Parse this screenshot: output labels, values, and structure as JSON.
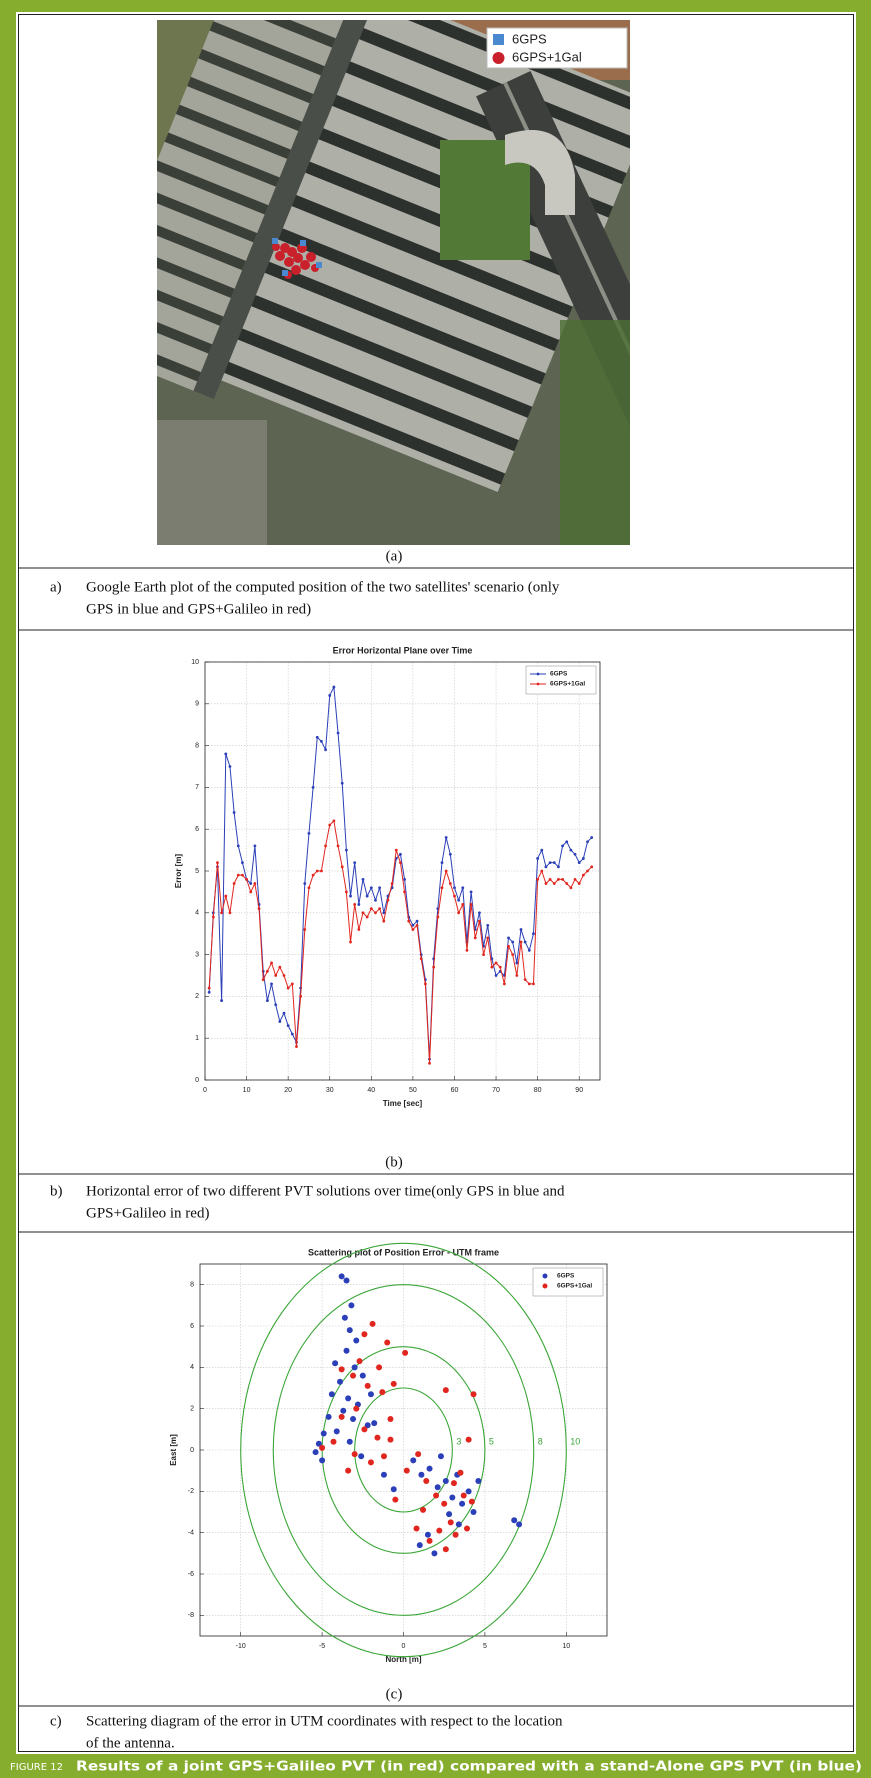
{
  "map": {
    "legend": [
      "6GPS",
      "6GPS+1Gal"
    ]
  },
  "panels": [
    {
      "label": "(a)",
      "caption_marker": "a)",
      "caption_lines": [
        "Google Earth plot of the computed position of the two satellites' scenario (only",
        "GPS in blue and GPS+Galileo in red)"
      ]
    },
    {
      "label": "(b)",
      "caption_marker": "b)",
      "caption_lines": [
        "Horizontal error of two different PVT solutions over time(only GPS in blue and",
        "GPS+Galileo in red)"
      ]
    },
    {
      "label": "(c)",
      "caption_marker": "c)",
      "caption_lines": [
        "Scattering diagram of the error in UTM coordinates with respect to the location",
        "of the antenna."
      ]
    }
  ],
  "chart_data": [
    {
      "type": "line",
      "title": "Error Horizontal Plane over Time",
      "x_label": "Time [sec]",
      "y_label": "Error [m]",
      "x": [
        1,
        2,
        3,
        4,
        5,
        6,
        7,
        8,
        9,
        10,
        11,
        12,
        13,
        14,
        15,
        16,
        17,
        18,
        19,
        20,
        21,
        22,
        23,
        24,
        25,
        26,
        27,
        28,
        29,
        30,
        31,
        32,
        33,
        34,
        35,
        36,
        37,
        38,
        39,
        40,
        41,
        42,
        43,
        44,
        45,
        46,
        47,
        48,
        49,
        50,
        51,
        52,
        53,
        54,
        55,
        56,
        57,
        58,
        59,
        60,
        61,
        62,
        63,
        64,
        65,
        66,
        67,
        68,
        69,
        70,
        71,
        72,
        73,
        74,
        75,
        76,
        77,
        78,
        79,
        80,
        81,
        82,
        83,
        84,
        85,
        86,
        87,
        88,
        89,
        90,
        91,
        92,
        93
      ],
      "xlim": [
        0,
        95
      ],
      "xticks": [
        0,
        10,
        20,
        30,
        40,
        50,
        60,
        70,
        80,
        90
      ],
      "ylim": [
        0,
        10
      ],
      "yticks": [
        0,
        1,
        2,
        3,
        4,
        5,
        6,
        7,
        8,
        9,
        10
      ],
      "grid": true,
      "legend": "upper right",
      "series": [
        {
          "name": "6GPS",
          "color": "#2b3fb8",
          "values": [
            2.1,
            4.0,
            5.1,
            1.9,
            7.8,
            7.5,
            6.4,
            5.6,
            5.2,
            4.8,
            4.7,
            5.6,
            4.2,
            2.6,
            1.9,
            2.3,
            1.8,
            1.4,
            1.6,
            1.3,
            1.1,
            0.9,
            2.2,
            4.7,
            5.9,
            7.0,
            8.2,
            8.1,
            7.9,
            9.2,
            9.4,
            8.3,
            7.1,
            5.5,
            4.4,
            5.2,
            4.2,
            4.8,
            4.4,
            4.6,
            4.3,
            4.6,
            4.0,
            4.4,
            4.6,
            5.3,
            5.4,
            4.8,
            3.9,
            3.7,
            3.8,
            3.0,
            2.4,
            0.5,
            2.9,
            4.1,
            5.2,
            5.8,
            5.4,
            4.6,
            4.3,
            4.6,
            3.3,
            4.5,
            3.6,
            4.0,
            3.2,
            3.7,
            2.9,
            2.5,
            2.6,
            2.5,
            3.4,
            3.3,
            2.8,
            3.6,
            3.3,
            3.1,
            3.5,
            5.3,
            5.5,
            5.1,
            5.2,
            5.2,
            5.1,
            5.6,
            5.7,
            5.5,
            5.4,
            5.2,
            5.3,
            5.7,
            5.8
          ]
        },
        {
          "name": "6GPS+1Gal",
          "color": "#e0261e",
          "values": [
            2.2,
            3.9,
            5.2,
            4.0,
            4.4,
            4.0,
            4.7,
            4.9,
            4.9,
            4.8,
            4.5,
            4.7,
            4.1,
            2.4,
            2.6,
            2.8,
            2.5,
            2.7,
            2.5,
            2.2,
            2.3,
            0.8,
            2.0,
            3.6,
            4.6,
            4.9,
            5.0,
            5.0,
            5.6,
            6.1,
            6.2,
            5.6,
            5.1,
            4.5,
            3.3,
            4.2,
            3.6,
            4.0,
            3.9,
            4.1,
            4.0,
            4.1,
            3.8,
            4.3,
            4.7,
            5.5,
            5.2,
            4.5,
            3.8,
            3.6,
            3.7,
            2.9,
            2.3,
            0.4,
            2.7,
            3.9,
            4.6,
            5.0,
            4.7,
            4.4,
            4.0,
            4.2,
            3.1,
            4.2,
            3.4,
            3.8,
            3.0,
            3.4,
            2.7,
            2.8,
            2.7,
            2.3,
            3.2,
            3.0,
            2.5,
            3.3,
            2.4,
            2.3,
            2.3,
            4.8,
            5.0,
            4.7,
            4.8,
            4.7,
            4.8,
            4.8,
            4.7,
            4.6,
            4.8,
            4.7,
            4.9,
            5.0,
            5.1
          ]
        }
      ]
    },
    {
      "type": "scatter",
      "title": "Scattering plot of Position Error - UTM frame",
      "x_label": "North [m]",
      "y_label": "East [m]",
      "xlim": [
        -12.5,
        12.5
      ],
      "xticks": [
        -10,
        -5,
        0,
        5,
        10
      ],
      "ylim": [
        -9,
        9
      ],
      "yticks": [
        -8,
        -6,
        -4,
        -2,
        0,
        2,
        4,
        6,
        8
      ],
      "grid": true,
      "legend": "upper right",
      "circle_radii": [
        3,
        5,
        8,
        10
      ],
      "circle_color": "#3aa637",
      "series": [
        {
          "name": "6GPS",
          "color": "#2b3fb8",
          "x": [
            -3.8,
            -3.5,
            -3.2,
            -3.6,
            -3.3,
            -2.9,
            -3.5,
            -4.2,
            -3.0,
            -2.5,
            -3.9,
            -4.4,
            -3.4,
            -2.8,
            -3.7,
            -4.6,
            -3.1,
            -2.2,
            -4.9,
            -5.2,
            -5.4,
            -5.0,
            -4.1,
            -3.3,
            -2.6,
            -1.8,
            -1.2,
            -0.6,
            0.6,
            1.1,
            1.6,
            2.3,
            2.1,
            2.6,
            3.0,
            3.3,
            3.6,
            2.8,
            3.4,
            4.0,
            4.3,
            1.5,
            1.0,
            1.9,
            6.8,
            7.1,
            4.6,
            -2.0
          ],
          "y": [
            8.4,
            8.2,
            7.0,
            6.4,
            5.8,
            5.3,
            4.8,
            4.2,
            4.0,
            3.6,
            3.3,
            2.7,
            2.5,
            2.2,
            1.9,
            1.6,
            1.5,
            1.2,
            0.8,
            0.3,
            -0.1,
            -0.5,
            0.9,
            0.4,
            -0.3,
            1.3,
            -1.2,
            -1.9,
            -0.5,
            -1.2,
            -0.9,
            -0.3,
            -1.8,
            -1.5,
            -2.3,
            -1.2,
            -2.6,
            -3.1,
            -3.6,
            -2.0,
            -3.0,
            -4.1,
            -4.6,
            -5.0,
            -3.4,
            -3.6,
            -1.5,
            2.7
          ]
        },
        {
          "name": "6GPS+1Gal",
          "color": "#e0261e",
          "x": [
            -2.4,
            -1.9,
            -1.0,
            -2.7,
            -1.5,
            -3.1,
            -2.2,
            -1.3,
            -0.6,
            0.1,
            -2.9,
            -3.8,
            -2.4,
            -1.6,
            -4.3,
            -5.0,
            -3.0,
            -2.0,
            -1.2,
            -3.4,
            -0.8,
            0.2,
            0.9,
            1.4,
            2.0,
            2.5,
            3.1,
            3.5,
            3.7,
            2.9,
            3.2,
            2.2,
            1.6,
            0.8,
            2.6,
            3.9,
            4.2,
            4.0,
            4.3,
            2.6,
            1.2,
            -0.5,
            -3.8,
            -0.8
          ],
          "y": [
            5.6,
            6.1,
            5.2,
            4.3,
            4.0,
            3.6,
            3.1,
            2.8,
            3.2,
            4.7,
            2.0,
            1.6,
            1.0,
            0.6,
            0.4,
            0.1,
            -0.2,
            -0.6,
            -0.3,
            -1.0,
            0.5,
            -1.0,
            -0.2,
            -1.5,
            -2.2,
            -2.6,
            -1.6,
            -1.1,
            -2.2,
            -3.5,
            -4.1,
            -3.9,
            -4.4,
            -3.8,
            -4.8,
            -3.8,
            -2.5,
            0.5,
            2.7,
            2.9,
            -2.9,
            -2.4,
            3.9,
            1.5
          ]
        }
      ]
    }
  ],
  "figure": {
    "number": "FIGURE 12",
    "caption": "Results of a joint GPS+Galileo PVT (in red) compared with a stand-Alone GPS PVT (in blue)"
  }
}
